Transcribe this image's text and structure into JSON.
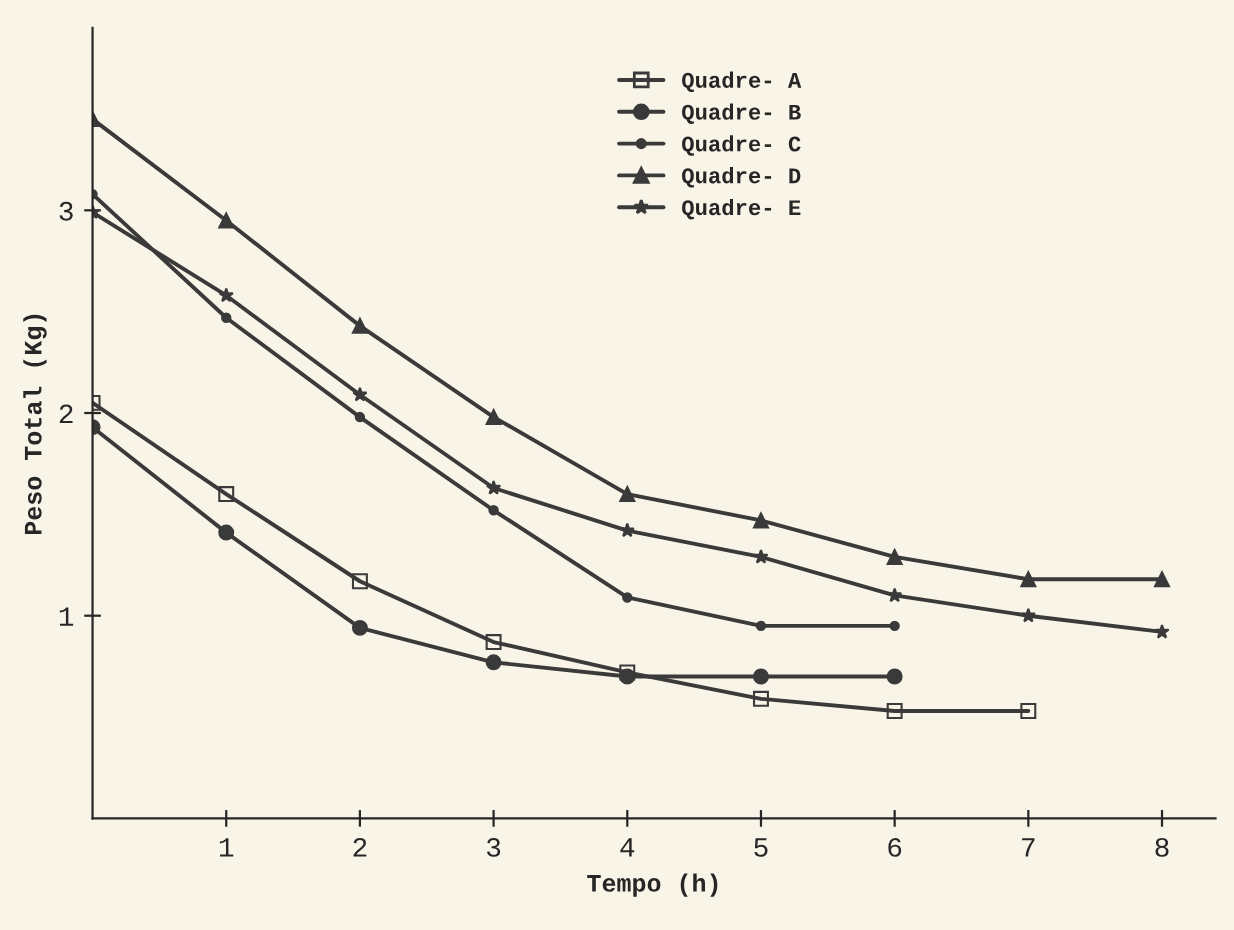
{
  "chart_data": {
    "type": "line",
    "xlabel": "Tempo (h)",
    "ylabel": "Peso Total (Kg)",
    "xlim": [
      0,
      8.4
    ],
    "ylim": [
      0,
      3.9
    ],
    "xticks": [
      1,
      2,
      3,
      4,
      5,
      6,
      7,
      8
    ],
    "yticks": [
      1,
      2,
      3
    ],
    "grid": false,
    "legend": "top",
    "line_style": "solid",
    "series": [
      {
        "name": "Quadre- A",
        "color": "#3a3a3a",
        "marker": "square",
        "x": [
          0,
          1,
          2,
          3,
          4,
          5,
          6,
          7
        ],
        "values": [
          2.05,
          1.6,
          1.17,
          0.87,
          0.72,
          0.59,
          0.53,
          0.53
        ]
      },
      {
        "name": "Quadre- B",
        "color": "#3a3a3a",
        "marker": "circle",
        "x": [
          0,
          1,
          2,
          3,
          4,
          5,
          6
        ],
        "values": [
          1.93,
          1.41,
          0.94,
          0.77,
          0.7,
          0.7,
          0.7
        ]
      },
      {
        "name": "Quadre- C",
        "color": "#3a3a3a",
        "marker": "circle",
        "x": [
          0,
          1,
          2,
          3,
          4,
          5,
          6
        ],
        "values": [
          3.08,
          2.47,
          1.98,
          1.52,
          1.09,
          0.95,
          0.95
        ]
      },
      {
        "name": "Quadre- D",
        "color": "#3a3a3a",
        "marker": "triangle",
        "x": [
          0,
          1,
          2,
          3,
          4,
          5,
          6,
          7,
          8
        ],
        "values": [
          3.45,
          2.95,
          2.43,
          1.98,
          1.6,
          1.47,
          1.29,
          1.18,
          1.18
        ]
      },
      {
        "name": "Quadre- E",
        "color": "#3a3a3a",
        "marker": "star",
        "x": [
          0,
          1,
          2,
          3,
          4,
          5,
          6,
          7,
          8
        ],
        "values": [
          2.99,
          2.58,
          2.09,
          1.63,
          1.42,
          1.29,
          1.1,
          1.0,
          0.92
        ]
      }
    ]
  }
}
